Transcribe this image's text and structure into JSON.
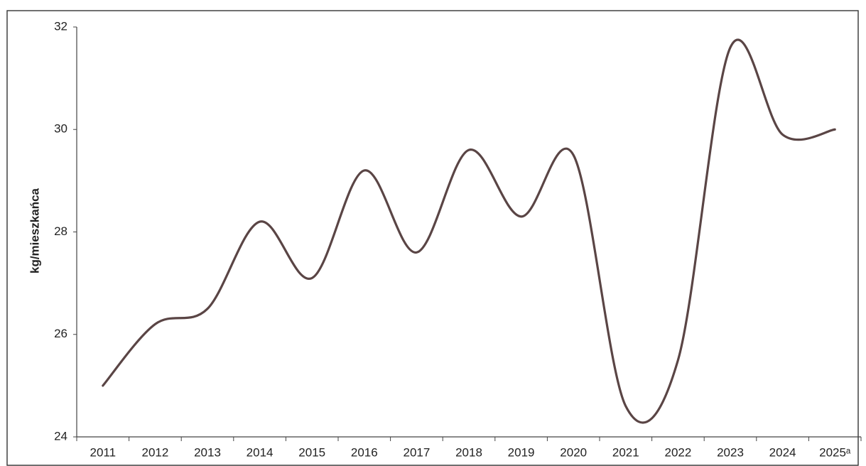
{
  "chart_data": {
    "type": "line",
    "ylabel": "kg/mieszkańca",
    "categories": [
      "2011",
      "2012",
      "2013",
      "2014",
      "2015",
      "2016",
      "2017",
      "2018",
      "2019",
      "2020",
      "2021",
      "2022",
      "2023",
      "2024",
      "2025ᵃ"
    ],
    "series": [
      {
        "values": [
          25.0,
          26.2,
          26.5,
          28.2,
          27.1,
          29.2,
          27.6,
          29.6,
          28.3,
          29.5,
          24.6,
          25.5,
          31.6,
          29.9,
          30.0
        ],
        "color": "#5a4545"
      }
    ],
    "ylim": [
      24,
      32
    ],
    "yticks": [
      "24",
      "26",
      "28",
      "30",
      "32"
    ],
    "grid": false,
    "smooth": true
  }
}
